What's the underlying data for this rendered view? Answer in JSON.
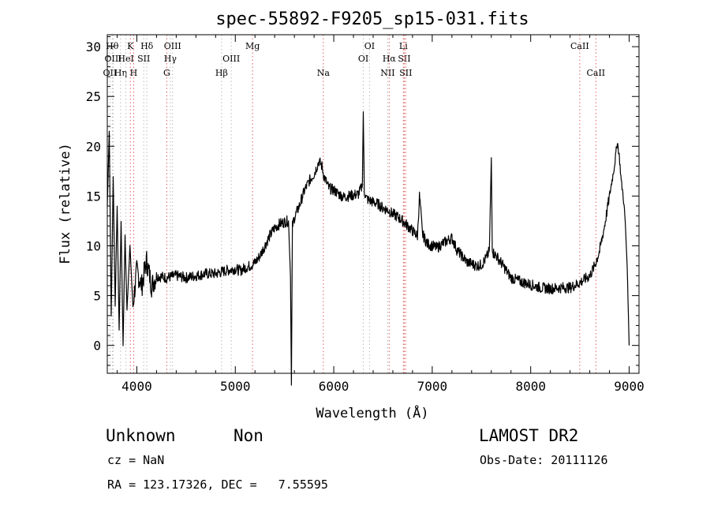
{
  "chart_data": {
    "type": "line",
    "title": "spec-55892-F9205_sp15-031.fits",
    "xlabel": "Wavelength (Å)",
    "ylabel": "Flux (relative)",
    "xlim": [
      3700,
      9100
    ],
    "ylim": [
      -2.8,
      31.2
    ],
    "xticks": [
      4000,
      5000,
      6000,
      7000,
      8000,
      9000
    ],
    "yticks": [
      0,
      5,
      10,
      15,
      20,
      25,
      30
    ],
    "tick_labels_x": [
      "4000",
      "5000",
      "6000",
      "7000",
      "8000",
      "9000"
    ],
    "tick_labels_y": [
      "0",
      "5",
      "10",
      "15",
      "20",
      "25",
      "30"
    ],
    "grid": false,
    "series": [
      {
        "name": "flux",
        "x": [
          3700,
          3720,
          3740,
          3760,
          3780,
          3800,
          3820,
          3840,
          3860,
          3880,
          3900,
          3930,
          3960,
          4000,
          4050,
          4100,
          4150,
          4200,
          4300,
          4400,
          4500,
          4600,
          4700,
          4800,
          4900,
          4950,
          5000,
          5050,
          5100,
          5150,
          5200,
          5250,
          5300,
          5350,
          5400,
          5450,
          5500,
          5540,
          5560,
          5570,
          5580,
          5600,
          5650,
          5700,
          5750,
          5800,
          5850,
          5880,
          5900,
          5950,
          6000,
          6050,
          6100,
          6150,
          6200,
          6250,
          6290,
          6300,
          6310,
          6330,
          6350,
          6400,
          6450,
          6500,
          6550,
          6600,
          6650,
          6700,
          6750,
          6800,
          6850,
          6870,
          6880,
          6900,
          6950,
          7000,
          7050,
          7100,
          7150,
          7200,
          7250,
          7300,
          7350,
          7400,
          7450,
          7500,
          7550,
          7580,
          7600,
          7610,
          7620,
          7650,
          7700,
          7800,
          7900,
          8000,
          8100,
          8200,
          8300,
          8400,
          8500,
          8600,
          8650,
          8700,
          8750,
          8800,
          8850,
          8880,
          8900,
          8920,
          8940,
          8960,
          8980,
          9000
        ],
        "values": [
          14.0,
          21.5,
          3.0,
          17.0,
          4.0,
          14.0,
          1.5,
          12.5,
          0.0,
          11.0,
          3.5,
          10.0,
          4.0,
          7.5,
          6.0,
          8.5,
          6.0,
          7.0,
          6.8,
          7.0,
          6.8,
          7.0,
          7.2,
          7.2,
          7.5,
          7.6,
          7.7,
          7.5,
          7.8,
          8.0,
          8.3,
          9.0,
          10.0,
          11.0,
          11.8,
          12.2,
          12.4,
          12.5,
          7.0,
          -4.0,
          12.0,
          12.8,
          14.0,
          15.5,
          16.5,
          17.2,
          18.5,
          18.0,
          17.0,
          15.8,
          15.6,
          15.2,
          14.9,
          15.0,
          15.1,
          15.2,
          16.0,
          23.5,
          15.5,
          14.8,
          14.6,
          14.4,
          14.2,
          13.8,
          13.6,
          13.2,
          12.9,
          12.5,
          12.0,
          11.5,
          11.0,
          15.0,
          14.0,
          11.2,
          10.2,
          10.0,
          9.8,
          10.2,
          10.5,
          10.8,
          9.6,
          9.0,
          8.4,
          8.2,
          8.0,
          8.1,
          8.8,
          9.5,
          18.8,
          10.0,
          9.3,
          9.0,
          8.3,
          6.8,
          6.4,
          6.1,
          5.8,
          5.7,
          5.8,
          5.8,
          6.3,
          7.0,
          8.0,
          9.5,
          12.0,
          15.0,
          18.0,
          20.5,
          19.0,
          16.5,
          15.0,
          12.5,
          8.0,
          0.0
        ]
      }
    ],
    "lines": [
      {
        "name": "OII",
        "wl": 3727,
        "row": 2,
        "color": "#bbbbbb"
      },
      {
        "name": "Hθ",
        "wl": 3750,
        "row": 0,
        "color": "#bbbbbb"
      },
      {
        "name": "OIII",
        "wl": 3760,
        "row": 1,
        "color": "#bbbbbb"
      },
      {
        "name": "Hη",
        "wl": 3835,
        "row": 2,
        "color": "#bbbbbb"
      },
      {
        "name": "HeI",
        "wl": 3889,
        "row": 1,
        "color": "#bbbbbb"
      },
      {
        "name": "K",
        "wl": 3934,
        "row": 0,
        "color": "#e06060"
      },
      {
        "name": "H",
        "wl": 3968,
        "row": 2,
        "color": "#e06060"
      },
      {
        "name": "SII",
        "wl": 4070,
        "row": 1,
        "color": "#bbbbbb"
      },
      {
        "name": "Hδ",
        "wl": 4102,
        "row": 0,
        "color": "#bbbbbb"
      },
      {
        "name": "G",
        "wl": 4304,
        "row": 2,
        "color": "#e06060"
      },
      {
        "name": "Hγ",
        "wl": 4340,
        "row": 1,
        "color": "#bbbbbb"
      },
      {
        "name": "OIII",
        "wl": 4363,
        "row": 0,
        "color": "#bbbbbb"
      },
      {
        "name": "Hβ",
        "wl": 4861,
        "row": 2,
        "color": "#bbbbbb"
      },
      {
        "name": "OIII",
        "wl": 4959,
        "row": 1,
        "color": "#bbbbbb"
      },
      {
        "name": "Mg",
        "wl": 5175,
        "row": 0,
        "color": "#e06060"
      },
      {
        "name": "Na",
        "wl": 5894,
        "row": 2,
        "color": "#e06060"
      },
      {
        "name": "OI",
        "wl": 6300,
        "row": 1,
        "color": "#bbbbbb"
      },
      {
        "name": "OI",
        "wl": 6363,
        "row": 0,
        "color": "#bbbbbb"
      },
      {
        "name": "NII",
        "wl": 6548,
        "row": 2,
        "color": "#bbbbbb"
      },
      {
        "name": "Hα",
        "wl": 6563,
        "row": 1,
        "color": "#e06060"
      },
      {
        "name": "Li",
        "wl": 6707,
        "row": 0,
        "color": "#e06060"
      },
      {
        "name": "SII",
        "wl": 6716,
        "row": 1,
        "color": "#e06060"
      },
      {
        "name": "SII",
        "wl": 6731,
        "row": 2,
        "color": "#e06060"
      },
      {
        "name": "CaII",
        "wl": 8498,
        "row": 0,
        "color": "#e06060"
      },
      {
        "name": "CaII",
        "wl": 8662,
        "row": 2,
        "color": "#e06060"
      }
    ]
  },
  "info": {
    "class_label": "Unknown",
    "subclass_label": "Non",
    "survey": "LAMOST DR2",
    "cz": "cz = NaN",
    "obs_date": "Obs-Date: 20111126",
    "radec": "RA = 123.17326, DEC =   7.55595"
  },
  "colors": {
    "axis": "#000000",
    "curve": "#000000"
  }
}
